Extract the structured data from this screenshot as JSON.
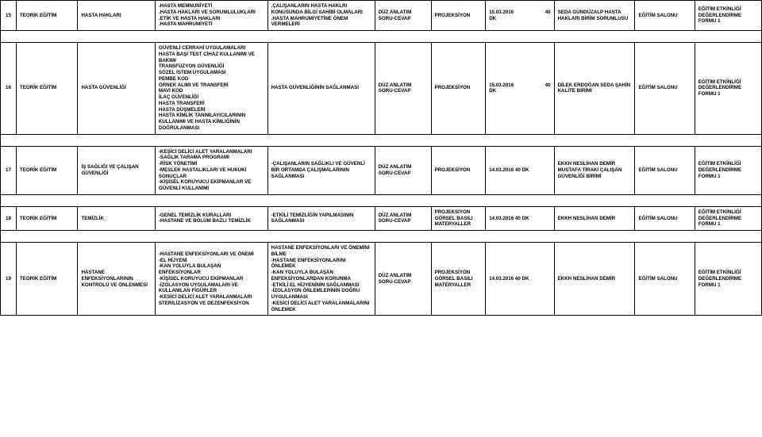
{
  "rows": [
    {
      "n": "15",
      "a": "TEORİK EĞİTİM",
      "b": "HASTA HAKLARI",
      "c": ".HASTA MEMNUNİYETİ\n.HASTA HAKLARI VE SORUMLULUKLARI\n.ETİK VE HASTA HAKLARI\n.HASTA MAHRUMİYETİ",
      "d": ".ÇALIŞANLARIN HASTA HAKLRI KONUSUNDA BİLGİ SAHİBİ OLMALARI\n.HASTA MAHRUMİYETİNE ÖNEM VERMELERİ",
      "e": "DÜZ ANLATIM SORU-CEVAP",
      "f": "PROJEKSİYON",
      "g": "15.03.2016\nDK",
      "g2": "40",
      "h": "SEDA GÜNDÜZALP HASTA HAKLARI BİRİM SORUMLUSU",
      "i": "EĞİTİM SALONU",
      "j": "EĞİTİM ETKİNLİĞİ DEĞERLENDİRME FORMU 1"
    },
    {
      "n": "16",
      "a": "TEORİK EĞİTİM",
      "b": "HASTA GÜVENLİĞİ",
      "c": "GÜVENLİ CERRAHİ UYGULAMALARI\nHASTA BAŞI TEST CİHAZ KULLANIMI VE BAKIMI\nTRANSFÜZYON GÜVENLİĞİ\nSÖZEL İSTEM UYGULAMASI\nPEMBE KOD\nÖRNEK ALIMI VE TRANSFERİ\nMAVİ KOD\nİLAÇ GÜVENLİĞİ\nHASTA TRANSFERİ\nHASTA DÜŞMELERİ\nHASTA KİMLİK TANIMLAYICILARININ KULLANIMI VE HASTA KİMLİĞİNİN DOĞRULANMASI",
      "d": "HASTA GÜVENLİĞİNİN SAĞLANMASI",
      "e": "DÜZ ANLATIM SORU-CEVAP",
      "f": "PROJEKSİYON",
      "g": "15.03.2016\nDK",
      "g2": "40",
      "h": "DİLEK ERDOĞAN SEDA ŞAHİN\nKALİTE BİRİMİ",
      "i": "EĞİTİM SALONU",
      "j": "EĞİTİM ETKİNLİĞİ DEĞERLENDİRME FORMU 1"
    },
    {
      "n": "17",
      "a": "TEORİK EĞİTİM",
      "b": "İŞ SAĞLIĞI VE ÇALIŞAN GÜVENLİĞİ",
      "c": "-KESİCİ DELİCİ ALET YARALANMALARI\n-SAĞLIK TARAMA PROGRAMI\n-RİSK YÖNETİMİ\n-MESLEK HASTALIKLARI VE HUKUKİ SONUÇLAR\n-KİŞİSEL KORUYUCU EKİPMANLAR VE GÜVENLİ KULLANIMI",
      "d": "-ÇALIŞANLARIN SAĞLIKLI VE GÜVENLİ BİR ORTAMDA ÇALIŞMALARININ SAĞLANMASI",
      "e": "DÜZ ANLATIM SORU-CEVAP",
      "f": "PROJEKSİYON",
      "g": "14.03.2016\n40 DK",
      "g2": "",
      "h": "EKKH NESLİHAN DEMİR   MUSTAFA TİRAKİ ÇALIŞAN GÜVENLİĞİ BİRİMİ",
      "i": "EĞİTİM SALONU",
      "j": "EĞİTİM ETKİNLİĞİ DEĞERLENDİRME FORMU 1"
    },
    {
      "n": "18",
      "a": "TEORİK EĞİTİM",
      "b": "TEMİZLİK",
      "c": "-GENEL TEMİZLİK KURALLARI\n-HASTANE VE BÖLÜM BAZLI TEMİZLİK",
      "d": "-ETKİLİ TEMİZLİĞİN YAPILMASININ SAĞLANMASI",
      "e": "DÜZ ANLATIM SORU-CEVAP",
      "f": "PROJEKSİYON GÖRSEL BASILI MATERYALLER",
      "g": "14.03.2016\n40 DK",
      "g2": "",
      "h": "EKKH NESLİHAN DEMİR",
      "i": "EĞİTİM SALONU",
      "j": "EĞİTİM ETKİNLİĞİ DEĞERLENDİRME FORMU 1"
    },
    {
      "n": "19",
      "a": "TEORİK EĞİTİM",
      "b": "HASTANE ENFEKSİYONLARININ KONTROLÜ VE ÖNLENMESİ",
      "c": "-HASTANE ENFEKSİYONLARI VE ÖNEMİ\n-EL HİJYENİ\n-KAN YOLUYLA BULAŞAN ENFEKSİYONLAR\n-KİŞİSEL KORUYUCU EKİPMANLAR\n-İZOLASYON UYGULAMALARI VE KULLANILAN FİGÜRLER\n-KESİCİ DELİCİ ALET YARALANMALARI\nSTERİLİZASYON VE DEZENFEKSİYON",
      "d": "HASTANE ENFEKSİYONLARI VE ÖNEMİNİ BİLME\n-HASTANE ENFEKSİYONLARINI ÖNLEMEK\n-KAN YOLUYLA BULAŞAN ENFEKSİYONLARDAN KORUNMA\n-ETKİLİ EL HİJYENİNİN SAĞLANMASI\n-İZOLASYON ÖNLEMLERİNİN DOĞRU UYGULANMASI\n-KESİCİ DELİCİ ALET YARALANMALARINI ÖNLEMEK",
      "e": "DÜZ ANLATIM SORU-CEVAP",
      "f": "PROJEKSİYON GÖRSEL BASILI MATERYALLER",
      "g": "14.03.2016\n40 DK",
      "g2": "",
      "h": "EKKH NESLİHAN DEMİR",
      "i": "EĞİTİM SALONU",
      "j": "EĞİTİM ETKİNLİĞİ DEĞERLENDİRME FORMU 1"
    }
  ]
}
